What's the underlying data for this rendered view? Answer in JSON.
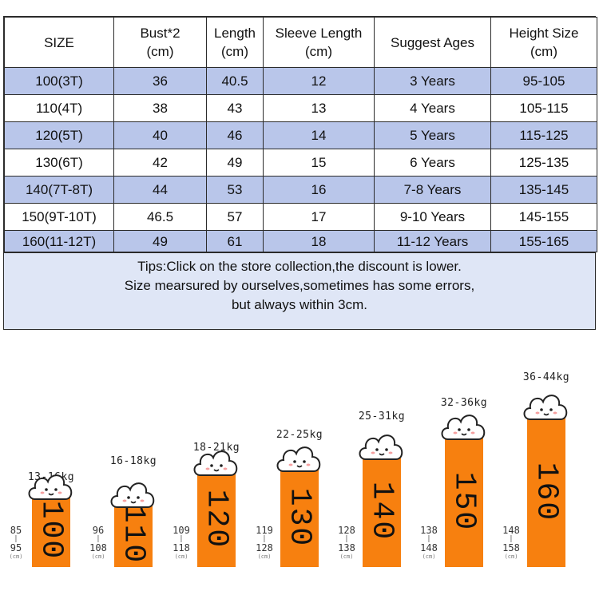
{
  "table": {
    "headers": [
      {
        "line1": "SIZE",
        "line2": ""
      },
      {
        "line1": "Bust*2",
        "line2": "(cm)"
      },
      {
        "line1": "Length",
        "line2": "(cm)"
      },
      {
        "line1": "Sleeve Length",
        "line2": "(cm)"
      },
      {
        "line1": "Suggest Ages",
        "line2": ""
      },
      {
        "line1": "Height Size",
        "line2": "(cm)"
      }
    ],
    "rows": [
      [
        "100(3T)",
        "36",
        "40.5",
        "12",
        "3 Years",
        "95-105"
      ],
      [
        "110(4T)",
        "38",
        "43",
        "13",
        "4 Years",
        "105-115"
      ],
      [
        "120(5T)",
        "40",
        "46",
        "14",
        "5 Years",
        "115-125"
      ],
      [
        "130(6T)",
        "42",
        "49",
        "15",
        "6 Years",
        "125-135"
      ],
      [
        "140(7T-8T)",
        "44",
        "53",
        "16",
        "7-8 Years",
        "135-145"
      ],
      [
        "150(9T-10T)",
        "46.5",
        "57",
        "17",
        "9-10 Years",
        "145-155"
      ],
      [
        "160(11-12T)",
        "49",
        "61",
        "18",
        "11-12 Years",
        "155-165"
      ]
    ],
    "tips": [
      "Tips:Click on the store collection,the discount is lower.",
      "Size mearsured by ourselves,sometimes has some errors,",
      "but always within 3cm."
    ],
    "colors": {
      "stripe": "#b9c6ea",
      "tips_bg": "#dfe6f6"
    }
  },
  "growth_chart": {
    "colors": {
      "pillar": "#f7800f"
    },
    "unit": "(cm)",
    "sizes": [
      {
        "code": "100",
        "weight": "13-16kg",
        "range_low": "85",
        "range_high": "95"
      },
      {
        "code": "110",
        "weight": "16-18kg",
        "range_low": "96",
        "range_high": "108"
      },
      {
        "code": "120",
        "weight": "18-21kg",
        "range_low": "109",
        "range_high": "118"
      },
      {
        "code": "130",
        "weight": "22-25kg",
        "range_low": "119",
        "range_high": "128"
      },
      {
        "code": "140",
        "weight": "25-31kg",
        "range_low": "128",
        "range_high": "138"
      },
      {
        "code": "150",
        "weight": "32-36kg",
        "range_low": "138",
        "range_high": "148"
      },
      {
        "code": "160",
        "weight": "36-44kg",
        "range_low": "148",
        "range_high": "158"
      }
    ]
  }
}
